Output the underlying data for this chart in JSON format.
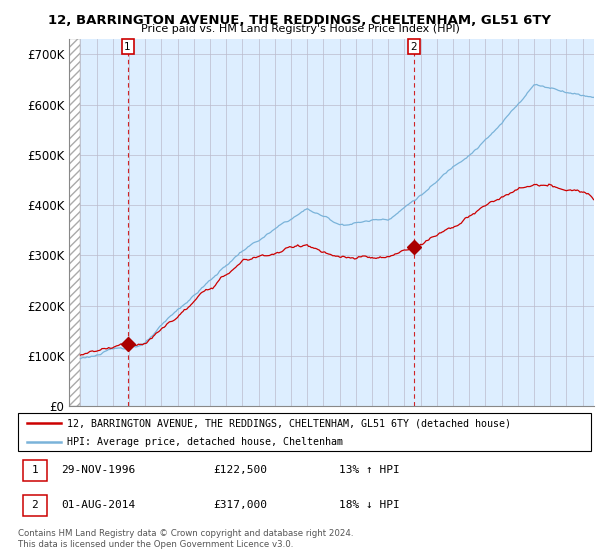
{
  "title": "12, BARRINGTON AVENUE, THE REDDINGS, CHELTENHAM, GL51 6TY",
  "subtitle": "Price paid vs. HM Land Registry's House Price Index (HPI)",
  "ylabel_ticks": [
    "£0",
    "£100K",
    "£200K",
    "£300K",
    "£400K",
    "£500K",
    "£600K",
    "£700K"
  ],
  "ytick_vals": [
    0,
    100000,
    200000,
    300000,
    400000,
    500000,
    600000,
    700000
  ],
  "ylim": [
    0,
    730000
  ],
  "xlim_start": 1993.3,
  "xlim_end": 2025.7,
  "sale1_x": 1996.917,
  "sale1_y": 122500,
  "sale2_x": 2014.583,
  "sale2_y": 317000,
  "sale1_label": "1",
  "sale2_label": "2",
  "hpi_color": "#7ab3d9",
  "price_color": "#cc0000",
  "marker_color": "#aa0000",
  "bg_fill_color": "#ddeeff",
  "legend_line1": "12, BARRINGTON AVENUE, THE REDDINGS, CHELTENHAM, GL51 6TY (detached house)",
  "legend_line2": "HPI: Average price, detached house, Cheltenham",
  "footnote": "Contains HM Land Registry data © Crown copyright and database right 2024.\nThis data is licensed under the Open Government Licence v3.0.",
  "hatch_color": "#cccccc",
  "grid_color": "#bbbbcc"
}
